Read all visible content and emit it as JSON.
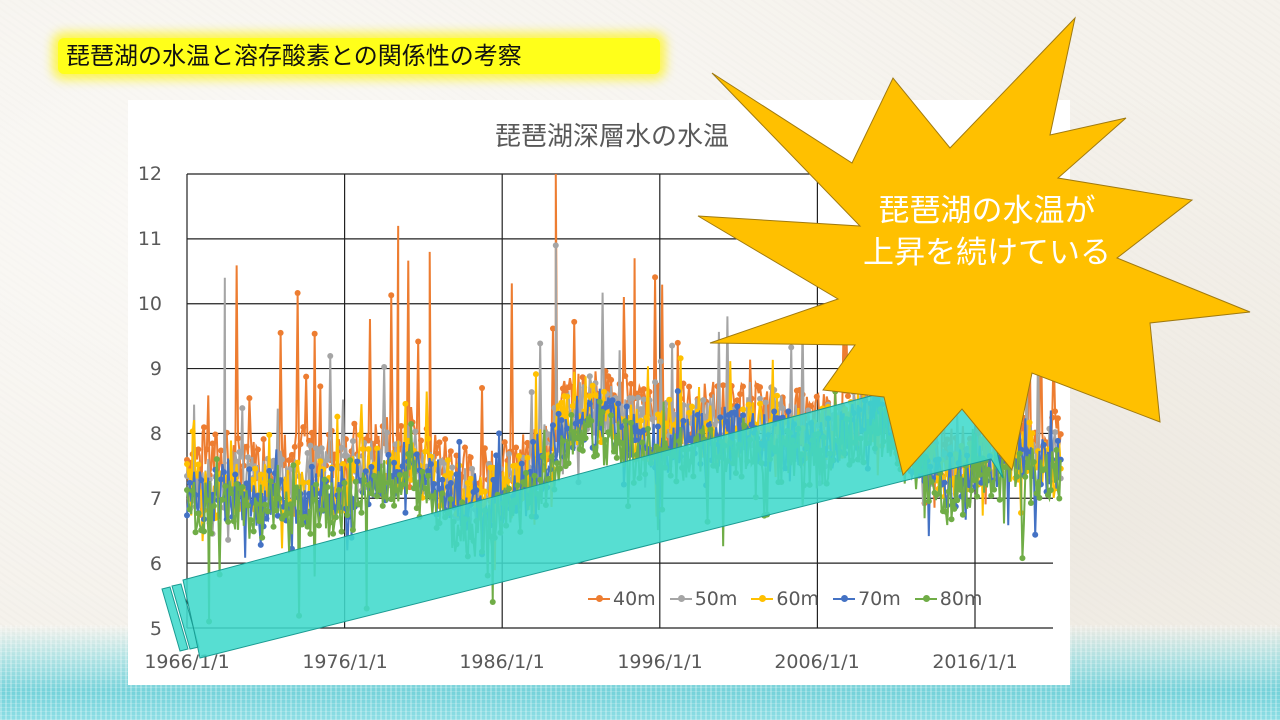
{
  "slide": {
    "title": "琵琶湖の水温と溶存酸素との関係性の考察",
    "title_highlight_color": "#ffff1a"
  },
  "callout": {
    "shape": "explosion-star",
    "fill_color": "#ffc000",
    "line1": "琵琶湖の水温が",
    "line2": "上昇を続けている"
  },
  "trend_arrow": {
    "shape": "striped-right-arrow",
    "fill_color": "#40d9cc",
    "direction": "upward-right",
    "from": "1966/1/1 ~5.5",
    "to": "2022 ~8.7"
  },
  "chart_data": {
    "type": "line",
    "title": "琵琶湖深層水の水温",
    "xlabel": "",
    "ylabel": "",
    "x_tick_labels": [
      "1966/1/1",
      "1976/1/1",
      "1986/1/1",
      "1996/1/1",
      "2006/1/1",
      "2016/1/1"
    ],
    "y_tick_labels": [
      "12",
      "11",
      "10",
      "9",
      "8",
      "7",
      "6",
      "5"
    ],
    "ylim": [
      5,
      12
    ],
    "xlim": [
      "1966/1/1",
      "2022/1/1"
    ],
    "grid": true,
    "legend_position": "bottom-right inside plot",
    "series": [
      {
        "name": "40m",
        "color": "#ed7d31",
        "annual_mean_approx": {
          "1966": 7.6,
          "1970": 7.6,
          "1976": 7.7,
          "1980": 8.0,
          "1984": 7.3,
          "1988": 7.6,
          "1990": 8.5,
          "1992": 8.6,
          "1996": 8.3,
          "2000": 8.4,
          "2006": 8.2,
          "2010": 8.7,
          "2014": 7.6,
          "2018": 8.0,
          "2021": 7.9
        },
        "notable_peaks": [
          {
            "x": "1989",
            "y": 12.0
          },
          {
            "x": "1979",
            "y": 11.2
          },
          {
            "x": "1981",
            "y": 10.8
          },
          {
            "x": "1994",
            "y": 10.7
          }
        ]
      },
      {
        "name": "50m",
        "color": "#a5a5a5",
        "annual_mean_approx": {
          "1966": 7.3,
          "1970": 7.3,
          "1976": 7.4,
          "1980": 7.7,
          "1984": 7.0,
          "1988": 7.4,
          "1990": 8.3,
          "1992": 8.4,
          "1996": 8.0,
          "2000": 8.2,
          "2006": 8.0,
          "2010": 8.5,
          "2014": 7.4,
          "2018": 7.8,
          "2021": 7.7
        },
        "notable_peaks": [
          {
            "x": "1989",
            "y": 10.9
          },
          {
            "x": "1968",
            "y": 10.4
          }
        ]
      },
      {
        "name": "60m",
        "color": "#ffc000",
        "annual_mean_approx": {
          "1966": 7.1,
          "1970": 7.1,
          "1976": 7.2,
          "1980": 7.6,
          "1984": 6.9,
          "1988": 7.3,
          "1990": 8.2,
          "1992": 8.3,
          "1996": 7.9,
          "2000": 8.1,
          "2006": 7.9,
          "2010": 8.4,
          "2014": 7.3,
          "2018": 7.7,
          "2021": 7.6
        }
      },
      {
        "name": "70m",
        "color": "#4472c4",
        "annual_mean_approx": {
          "1966": 7.0,
          "1970": 7.0,
          "1976": 7.1,
          "1980": 7.5,
          "1984": 6.8,
          "1988": 7.2,
          "1990": 8.1,
          "1992": 8.2,
          "1996": 7.8,
          "2000": 8.0,
          "2006": 7.8,
          "2010": 8.3,
          "2014": 7.2,
          "2018": 7.6,
          "2021": 7.5
        }
      },
      {
        "name": "80m",
        "color": "#70ad47",
        "annual_mean_approx": {
          "1966": 6.9,
          "1970": 6.8,
          "1976": 6.9,
          "1980": 7.3,
          "1984": 6.4,
          "1988": 7.0,
          "1990": 7.9,
          "1992": 8.0,
          "1996": 7.6,
          "2000": 7.8,
          "2006": 7.6,
          "2010": 8.1,
          "2014": 7.0,
          "2018": 7.4,
          "2021": 7.3
        },
        "notable_lows": [
          {
            "x": "1967",
            "y": 5.1
          },
          {
            "x": "1985",
            "y": 5.4
          },
          {
            "x": "1977",
            "y": 5.3
          }
        ]
      }
    ]
  }
}
